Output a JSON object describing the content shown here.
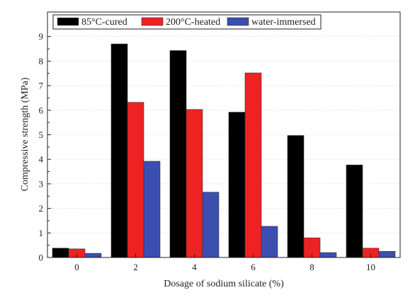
{
  "chart_data": {
    "type": "bar",
    "title": "",
    "xlabel": "Dosage of sodium silicate (%)",
    "ylabel": "Compressive strength (MPa)",
    "categories": [
      "0",
      "2",
      "4",
      "6",
      "8",
      "10"
    ],
    "ylim": [
      0,
      10
    ],
    "yticks": [
      "0",
      "1",
      "2",
      "3",
      "4",
      "5",
      "6",
      "7",
      "8",
      "9"
    ],
    "grid": true,
    "legend_position": "top",
    "series": [
      {
        "name": "85°C-cured",
        "color": "#000000",
        "values": [
          0.38,
          8.7,
          8.43,
          5.92,
          4.97,
          3.77
        ]
      },
      {
        "name": "200°C-heated",
        "color": "#ee2222",
        "values": [
          0.35,
          6.32,
          6.03,
          7.52,
          0.8,
          0.38
        ]
      },
      {
        "name": "water-immersed",
        "color": "#3a4fb0",
        "values": [
          0.17,
          3.92,
          2.66,
          1.27,
          0.2,
          0.25
        ]
      }
    ]
  }
}
